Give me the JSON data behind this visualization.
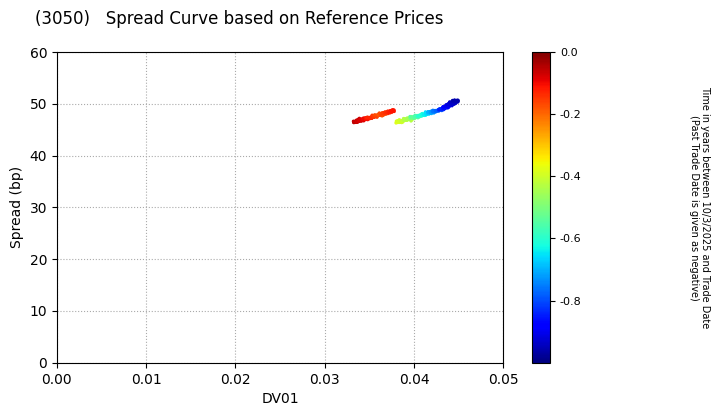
{
  "title": "(3050)   Spread Curve based on Reference Prices",
  "xlabel": "DV01",
  "ylabel": "Spread (bp)",
  "xlim": [
    0.0,
    0.05
  ],
  "ylim": [
    0,
    60
  ],
  "xticks": [
    0.0,
    0.01,
    0.02,
    0.03,
    0.04,
    0.05
  ],
  "yticks": [
    0,
    10,
    20,
    30,
    40,
    50,
    60
  ],
  "colorbar_label_line1": "Time in years between 10/3/2025 and Trade Date",
  "colorbar_label_line2": "(Past Trade Date is given as negative)",
  "clim": [
    -1.0,
    0.0
  ],
  "colorbar_ticks": [
    0.0,
    -0.2,
    -0.4,
    -0.6,
    -0.8
  ],
  "background_color": "#ffffff",
  "grid_color": "#aaaaaa",
  "points": {
    "dv01": [
      0.0333,
      0.0336,
      0.0338,
      0.034,
      0.0342,
      0.0344,
      0.0346,
      0.0348,
      0.035,
      0.0352,
      0.0354,
      0.0356,
      0.0358,
      0.036,
      0.0362,
      0.0364,
      0.0366,
      0.0368,
      0.037,
      0.0372,
      0.0374,
      0.0376,
      0.0382,
      0.0384,
      0.0386,
      0.0388,
      0.039,
      0.0392,
      0.0394,
      0.0396,
      0.0398,
      0.04,
      0.0402,
      0.0404,
      0.0406,
      0.0408,
      0.041,
      0.0412,
      0.0414,
      0.0416,
      0.0418,
      0.042,
      0.0422,
      0.0424,
      0.0426,
      0.0428,
      0.043,
      0.0432,
      0.0434,
      0.0436,
      0.0438,
      0.044,
      0.0442,
      0.0444,
      0.0446,
      0.0448
    ],
    "spread": [
      46.5,
      46.6,
      46.7,
      46.8,
      46.9,
      47.0,
      47.1,
      47.2,
      47.3,
      47.4,
      47.5,
      47.6,
      47.7,
      47.8,
      47.9,
      48.0,
      48.1,
      48.2,
      48.3,
      48.4,
      48.5,
      48.6,
      46.5,
      46.6,
      46.7,
      46.8,
      46.9,
      47.0,
      47.1,
      47.2,
      47.3,
      47.4,
      47.5,
      47.6,
      47.7,
      47.8,
      47.9,
      48.0,
      48.1,
      48.2,
      48.3,
      48.4,
      48.5,
      48.6,
      48.7,
      48.8,
      48.9,
      49.0,
      49.2,
      49.4,
      49.6,
      49.8,
      50.0,
      50.2,
      50.4,
      50.5
    ],
    "time": [
      -0.05,
      -0.06,
      -0.07,
      -0.07,
      -0.08,
      -0.09,
      -0.1,
      -0.11,
      -0.12,
      -0.13,
      -0.14,
      -0.15,
      -0.16,
      -0.17,
      -0.18,
      -0.17,
      -0.16,
      -0.15,
      -0.14,
      -0.13,
      -0.12,
      -0.11,
      -0.38,
      -0.39,
      -0.4,
      -0.41,
      -0.42,
      -0.43,
      -0.44,
      -0.45,
      -0.5,
      -0.52,
      -0.54,
      -0.56,
      -0.58,
      -0.6,
      -0.62,
      -0.64,
      -0.66,
      -0.68,
      -0.7,
      -0.72,
      -0.74,
      -0.76,
      -0.78,
      -0.8,
      -0.82,
      -0.84,
      -0.86,
      -0.88,
      -0.9,
      -0.92,
      -0.93,
      -0.94,
      -0.95,
      -0.96
    ]
  }
}
